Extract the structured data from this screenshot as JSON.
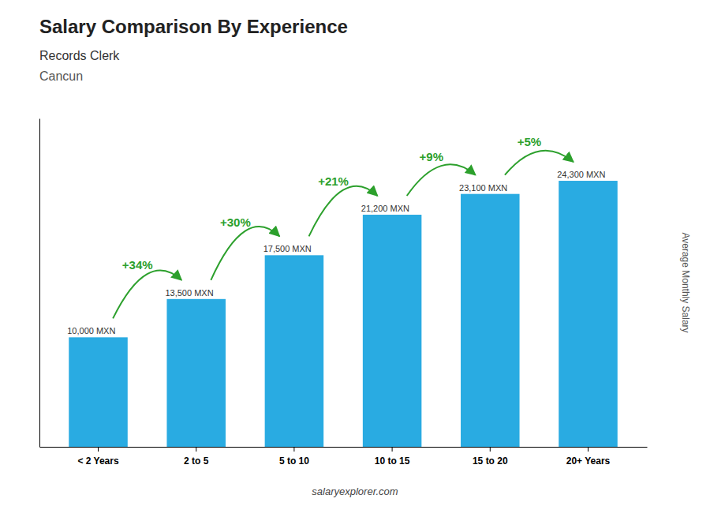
{
  "chart_data": {
    "type": "bar",
    "title": "Salary Comparison By Experience",
    "subtitles": [
      "Records Clerk",
      "Cancun"
    ],
    "y_label": "Average Monthly Salary",
    "categories": [
      "< 2 Years",
      "2 to 5",
      "5 to 10",
      "10 to 15",
      "15 to 20",
      "20+ Years"
    ],
    "values": [
      10000,
      13500,
      17500,
      21200,
      23100,
      24300
    ],
    "value_labels": [
      "10,000 MXN",
      "13,500 MXN",
      "17,500 MXN",
      "21,200 MXN",
      "23,100 MXN",
      "24,300 MXN"
    ],
    "data_labels": true,
    "annotations": [
      "+34%",
      "+30%",
      "+21%",
      "+9%",
      "+5%"
    ],
    "footer": "salaryexplorer.com",
    "color": "#29ABE2",
    "ylim": [
      0,
      30000
    ],
    "tick_labels": "x",
    "grid": false
  }
}
